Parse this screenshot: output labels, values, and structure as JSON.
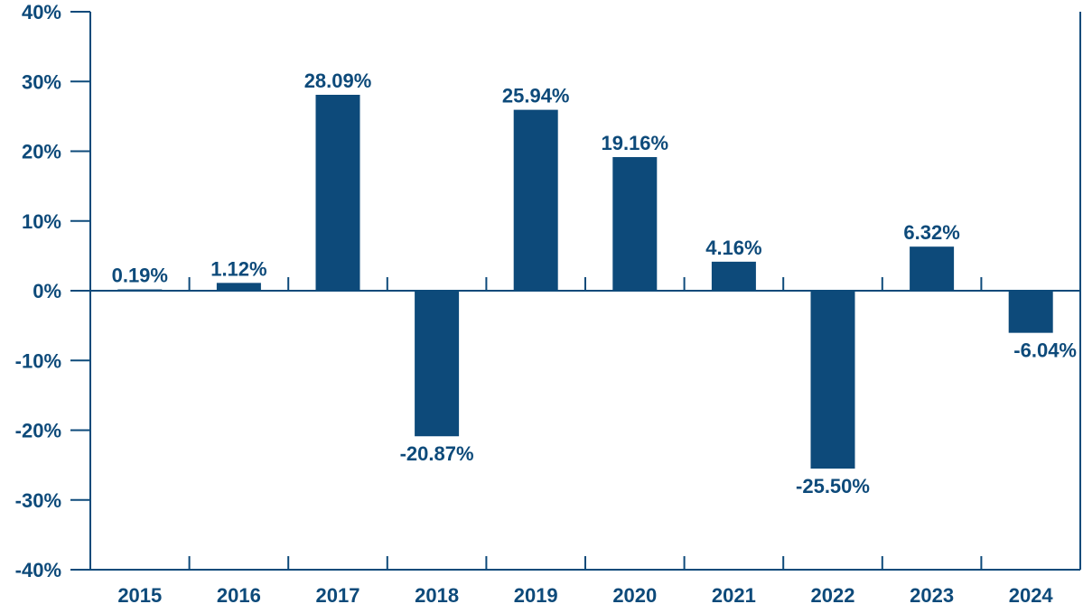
{
  "chart_data": {
    "type": "bar",
    "categories": [
      "2015",
      "2016",
      "2017",
      "2018",
      "2019",
      "2020",
      "2021",
      "2022",
      "2023",
      "2024"
    ],
    "values": [
      0.19,
      1.12,
      28.09,
      -20.87,
      25.94,
      19.16,
      4.16,
      -25.5,
      6.32,
      -6.04
    ],
    "data_labels": [
      "0.19%",
      "1.12%",
      "28.09%",
      "-20.87%",
      "25.94%",
      "19.16%",
      "4.16%",
      "-25.50%",
      "6.32%",
      "-6.04%"
    ],
    "yticks": [
      40,
      30,
      20,
      10,
      0,
      -10,
      -20,
      -30,
      -40
    ],
    "ytick_labels": [
      "40%",
      "30%",
      "20%",
      "10%",
      "0%",
      "-10%",
      "-20%",
      "-30%",
      "-40%"
    ],
    "ylim": [
      -40,
      40
    ],
    "title": "",
    "xlabel": "",
    "ylabel": "",
    "grid": false,
    "colors": {
      "bar": "#0d4a7a",
      "axis": "#0d4a7a",
      "label": "#0d4a7a"
    }
  }
}
